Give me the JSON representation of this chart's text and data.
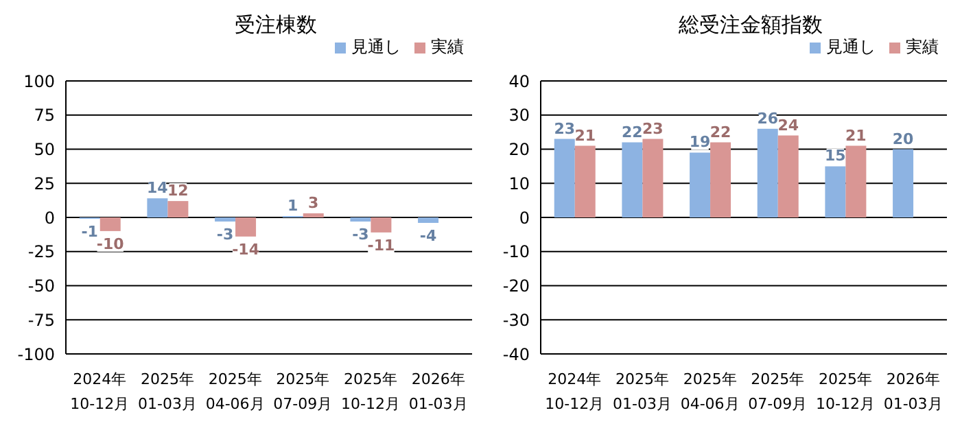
{
  "chart_data": [
    {
      "type": "bar",
      "title": "受注棟数",
      "categories": [
        "2024年\n10-12月",
        "2025年\n01-03月",
        "2025年\n04-06月",
        "2025年\n07-09月",
        "2025年\n10-12月",
        "2026年\n01-03月"
      ],
      "series": [
        {
          "name": "見通し",
          "color": "#8db3e2",
          "values": [
            -1,
            14,
            -3,
            1,
            -3,
            -4
          ]
        },
        {
          "name": "実績",
          "color": "#d99694",
          "values": [
            -10,
            12,
            -14,
            3,
            -11,
            null
          ]
        }
      ],
      "ylim": [
        -100,
        100
      ],
      "yticks": [
        -100,
        -75,
        -50,
        -25,
        0,
        25,
        50,
        75,
        100
      ],
      "grid": "y",
      "legend": "top right",
      "data_labels": true
    },
    {
      "type": "bar",
      "title": "総受注金額指数",
      "categories": [
        "2024年\n10-12月",
        "2025年\n01-03月",
        "2025年\n04-06月",
        "2025年\n07-09月",
        "2025年\n10-12月",
        "2026年\n01-03月"
      ],
      "series": [
        {
          "name": "見通し",
          "color": "#8db3e2",
          "values": [
            23,
            22,
            19,
            26,
            15,
            20
          ]
        },
        {
          "name": "実績",
          "color": "#d99694",
          "values": [
            21,
            23,
            22,
            24,
            21,
            null
          ]
        }
      ],
      "ylim": [
        -40,
        40
      ],
      "yticks": [
        -40,
        -30,
        -20,
        -10,
        0,
        10,
        20,
        30,
        40
      ],
      "grid": "y",
      "legend": "top right",
      "data_labels": true
    }
  ]
}
